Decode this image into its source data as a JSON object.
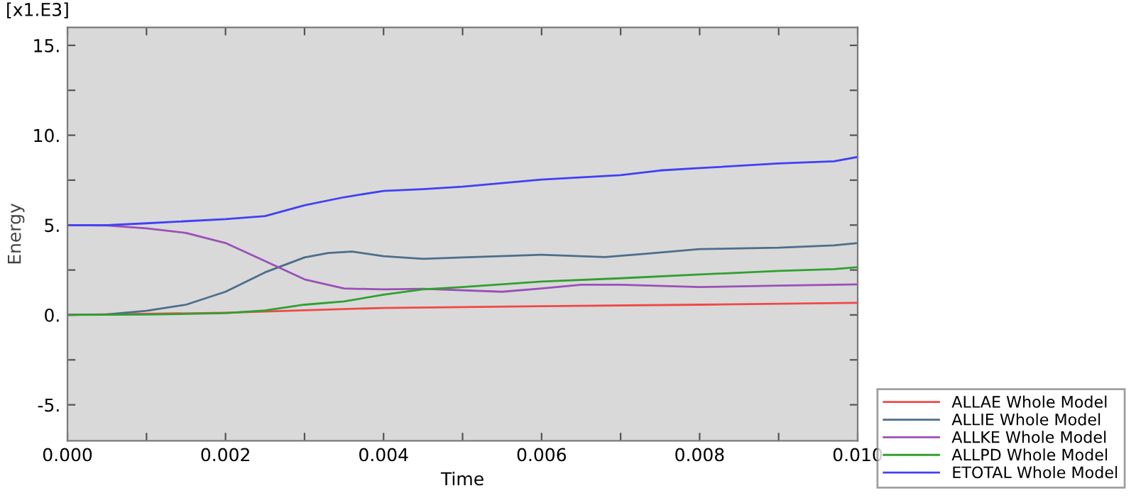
{
  "chart_data": {
    "type": "line",
    "xlabel": "Time",
    "ylabel": "Energy",
    "annotations": [
      "[x1.E3]"
    ],
    "xlim": [
      0,
      0.01
    ],
    "ylim": [
      -7,
      16
    ],
    "xticks": [
      {
        "value": 0,
        "label": "0.000"
      },
      {
        "value": 0.001,
        "label": null
      },
      {
        "value": 0.002,
        "label": "0.002"
      },
      {
        "value": 0.003,
        "label": null
      },
      {
        "value": 0.004,
        "label": "0.004"
      },
      {
        "value": 0.005,
        "label": null
      },
      {
        "value": 0.006,
        "label": "0.006"
      },
      {
        "value": 0.007,
        "label": null
      },
      {
        "value": 0.008,
        "label": "0.008"
      },
      {
        "value": 0.009,
        "label": null
      },
      {
        "value": 0.01,
        "label": "0.010"
      }
    ],
    "yticks": [
      {
        "value": -5,
        "label": "-5."
      },
      {
        "value": -2.5,
        "label": null
      },
      {
        "value": 0,
        "label": "0."
      },
      {
        "value": 2.5,
        "label": null
      },
      {
        "value": 5,
        "label": "5."
      },
      {
        "value": 7.5,
        "label": null
      },
      {
        "value": 10,
        "label": "10."
      },
      {
        "value": 12.5,
        "label": null
      },
      {
        "value": 15,
        "label": "15."
      }
    ],
    "grid": false,
    "legend": "bottom right",
    "marker": "none",
    "line_style": "solid",
    "series": [
      {
        "name": "ALLAE Whole Model",
        "color": "#f04848",
        "x": [
          0,
          0.002,
          0.003,
          0.004,
          0.005,
          0.006,
          0.008,
          0.01
        ],
        "values": [
          0,
          0.12,
          0.26,
          0.39,
          0.44,
          0.49,
          0.57,
          0.67
        ]
      },
      {
        "name": "ALLIE Whole Model",
        "color": "#4c6e8c",
        "x": [
          0,
          0.0005,
          0.001,
          0.0015,
          0.002,
          0.0025,
          0.003,
          0.0033,
          0.0036,
          0.004,
          0.0045,
          0.005,
          0.006,
          0.0068,
          0.0073,
          0.008,
          0.009,
          0.0097,
          0.01
        ],
        "values": [
          0,
          0.03,
          0.23,
          0.57,
          1.29,
          2.37,
          3.2,
          3.45,
          3.53,
          3.27,
          3.12,
          3.2,
          3.35,
          3.22,
          3.4,
          3.66,
          3.74,
          3.87,
          4.0
        ]
      },
      {
        "name": "ALLKE Whole Model",
        "color": "#9a50b8",
        "x": [
          0,
          0.0005,
          0.001,
          0.0015,
          0.002,
          0.0025,
          0.003,
          0.0035,
          0.004,
          0.0045,
          0.0055,
          0.006,
          0.0065,
          0.007,
          0.008,
          0.009,
          0.01
        ],
        "values": [
          5.0,
          4.98,
          4.82,
          4.56,
          4.0,
          3.0,
          1.98,
          1.47,
          1.42,
          1.45,
          1.29,
          1.47,
          1.68,
          1.68,
          1.55,
          1.63,
          1.7
        ]
      },
      {
        "name": "ALLPD Whole Model",
        "color": "#30a030",
        "x": [
          0,
          0.001,
          0.002,
          0.0025,
          0.003,
          0.0035,
          0.004,
          0.0045,
          0.005,
          0.006,
          0.007,
          0.008,
          0.009,
          0.0097,
          0.01
        ],
        "values": [
          0,
          0.02,
          0.1,
          0.25,
          0.57,
          0.75,
          1.13,
          1.42,
          1.55,
          1.86,
          2.04,
          2.25,
          2.45,
          2.55,
          2.66
        ]
      },
      {
        "name": "ETOTAL Whole Model",
        "color": "#4040f8",
        "x": [
          0,
          0.0005,
          0.001,
          0.002,
          0.0025,
          0.003,
          0.0035,
          0.004,
          0.0045,
          0.005,
          0.006,
          0.007,
          0.0075,
          0.008,
          0.009,
          0.0097,
          0.01
        ],
        "values": [
          5.0,
          5.0,
          5.1,
          5.33,
          5.5,
          6.1,
          6.55,
          6.9,
          7.0,
          7.14,
          7.53,
          7.78,
          8.04,
          8.17,
          8.43,
          8.55,
          8.79
        ]
      }
    ]
  }
}
